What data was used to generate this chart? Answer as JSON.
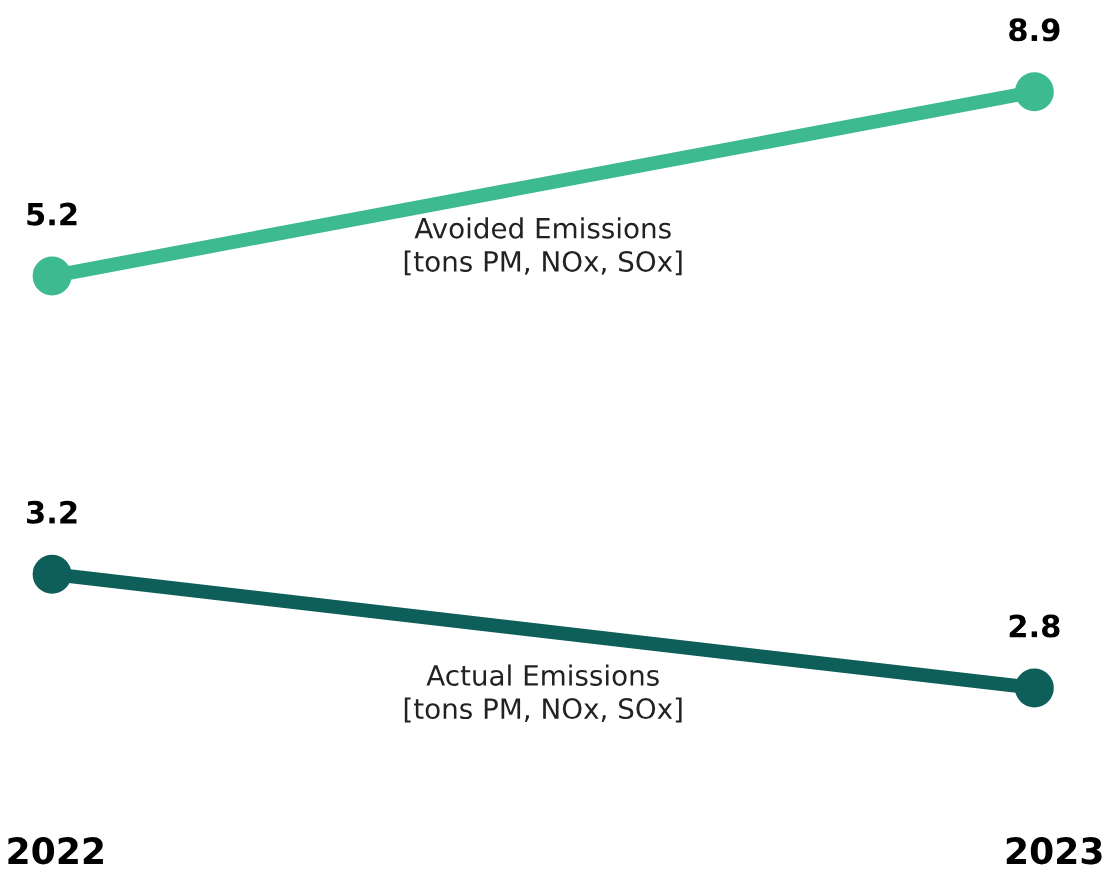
{
  "chart_data": [
    {
      "type": "line",
      "categories": [
        "2022",
        "2023"
      ],
      "tick_labels": false,
      "marker": "circle",
      "line_style": "solid",
      "data_labels": true,
      "series": [
        {
          "name": "Avoided Emissions\n[tons PM, NOx, SOx]",
          "color": "#3dba8f",
          "values": [
            5.2,
            8.9
          ]
        }
      ]
    },
    {
      "type": "line",
      "categories": [
        "2022",
        "2023"
      ],
      "marker": "circle",
      "line_style": "solid",
      "data_labels": true,
      "series": [
        {
          "name": "Actual Emissions\n[tons PM, NOx, SOx]",
          "color": "#0e5e5a",
          "values": [
            3.2,
            2.8
          ]
        }
      ]
    }
  ]
}
